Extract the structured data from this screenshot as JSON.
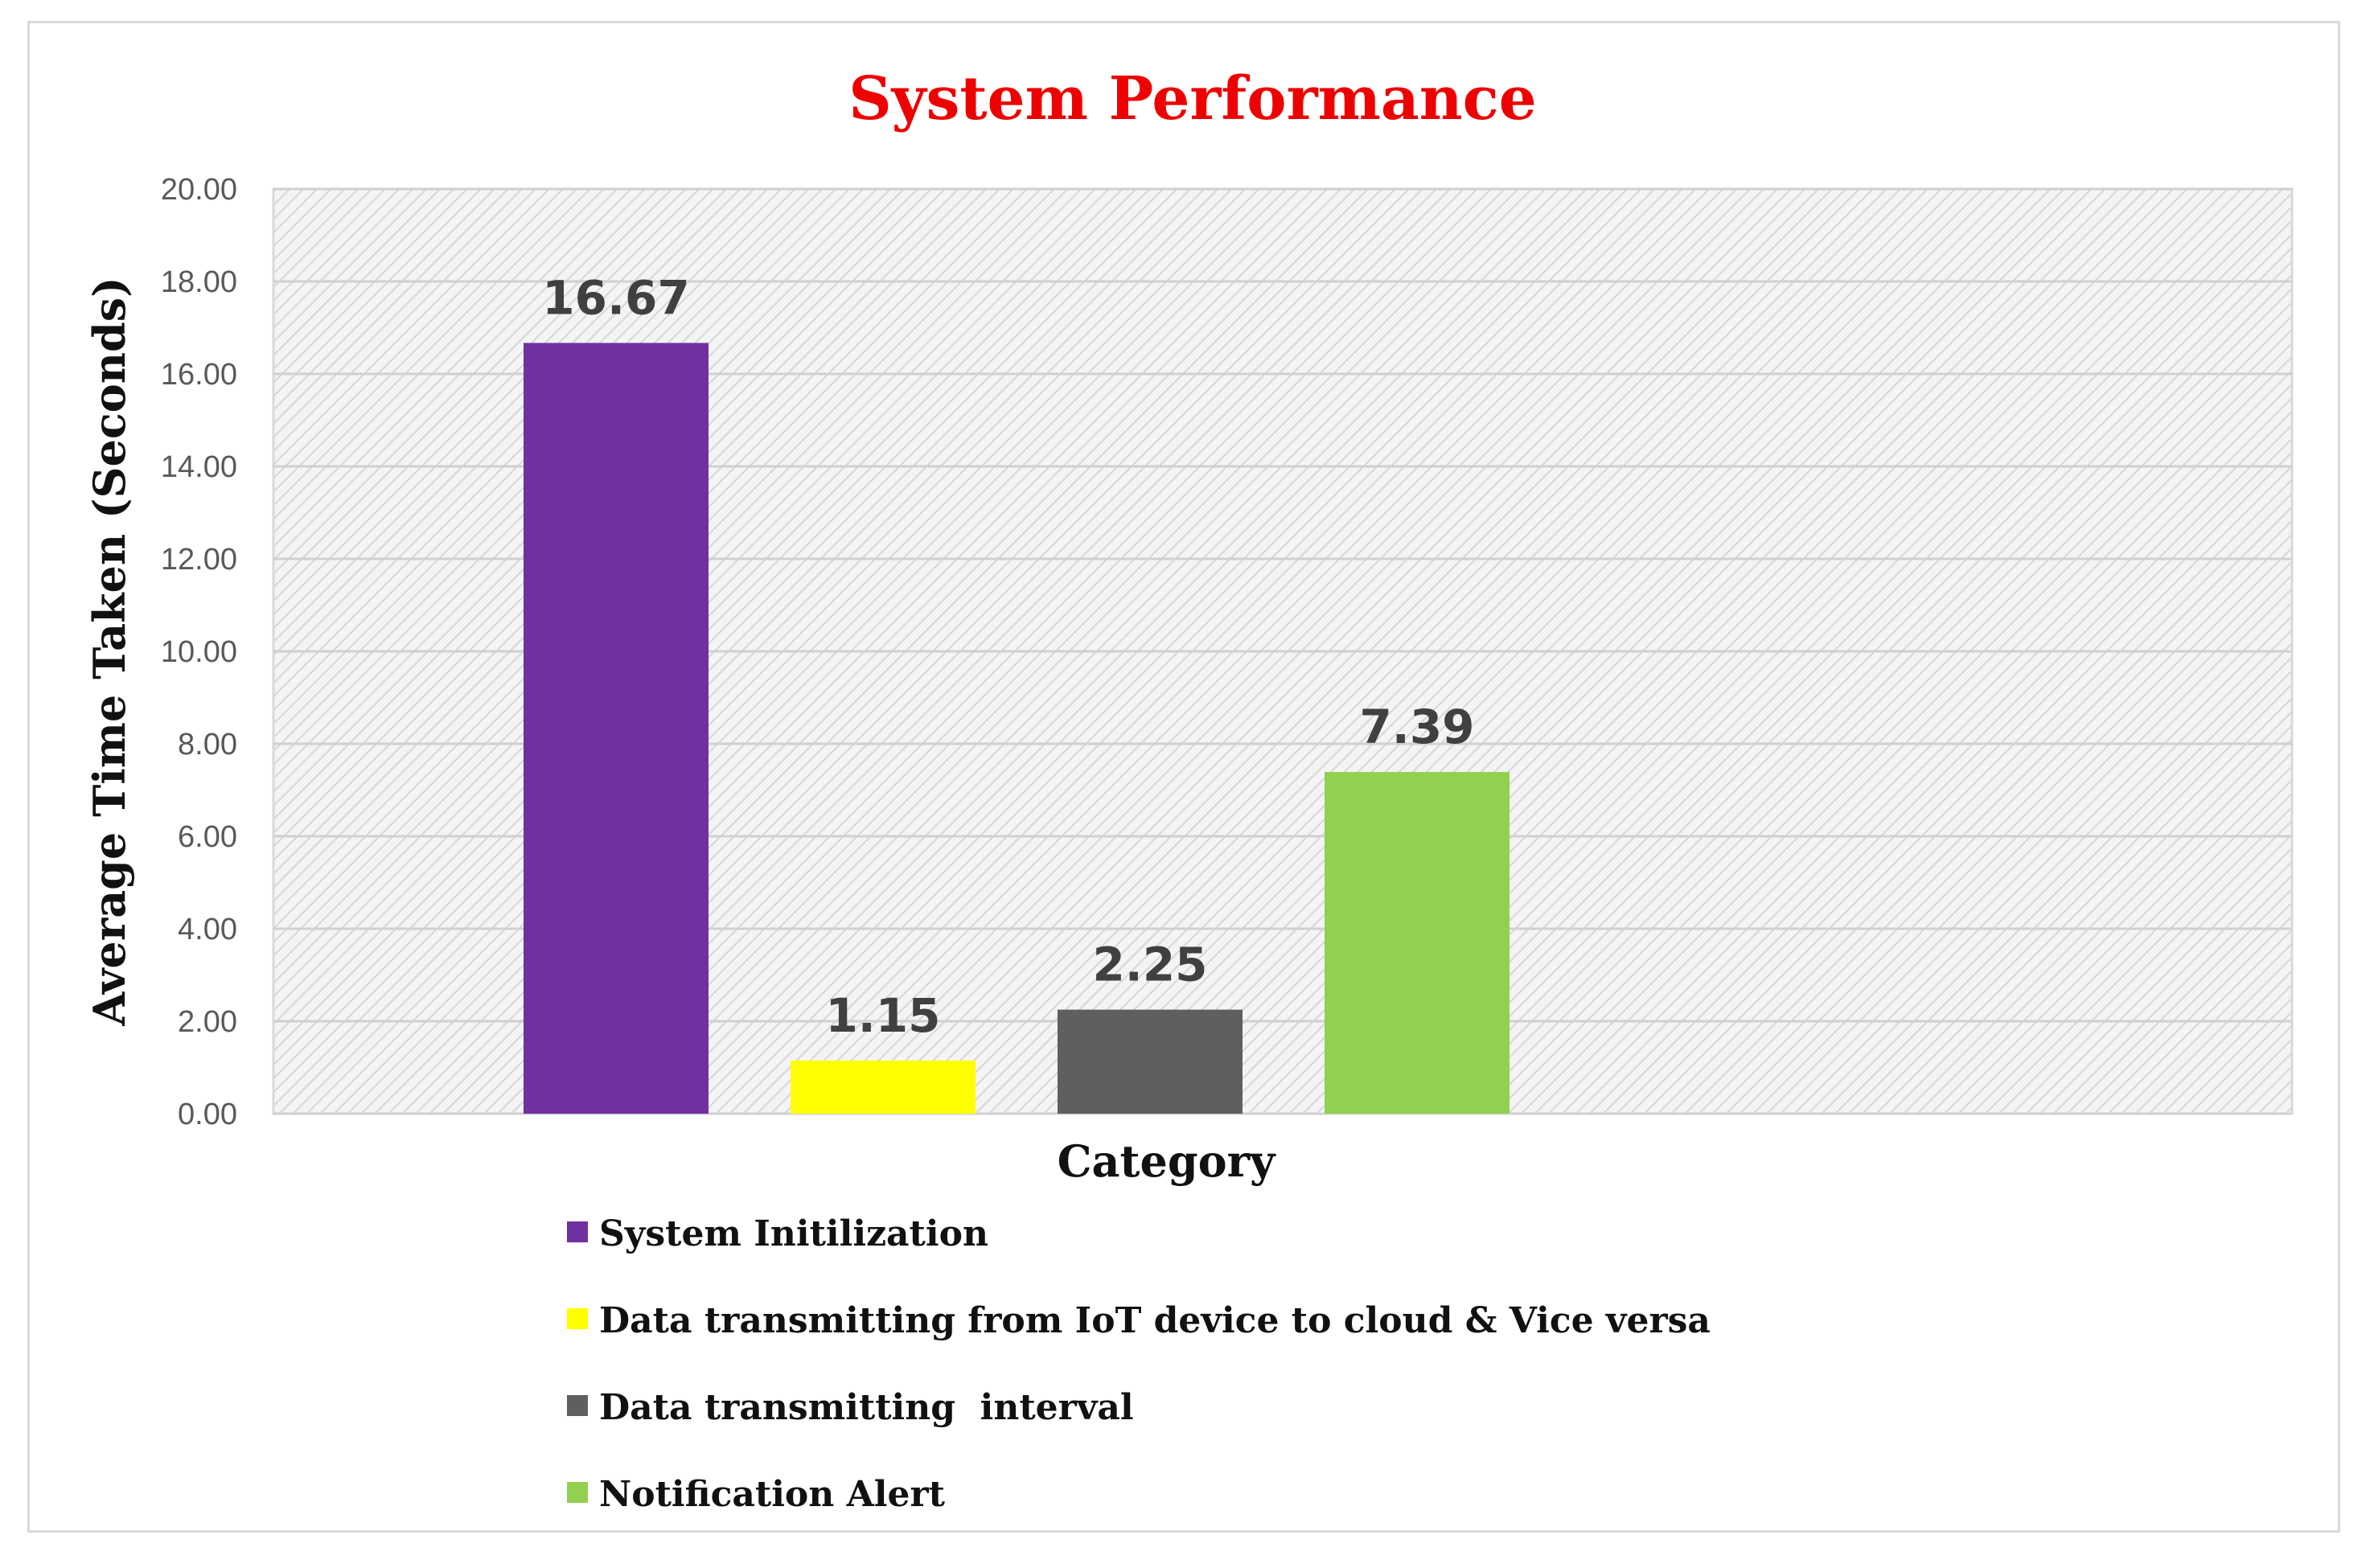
{
  "chart_data": {
    "type": "bar",
    "title": "System Performance",
    "xlabel": "Category",
    "ylabel": "Average Time Taken (Seconds)",
    "ylim": [
      0,
      20
    ],
    "yticks": [
      "0.00",
      "2.00",
      "4.00",
      "6.00",
      "8.00",
      "10.00",
      "12.00",
      "14.00",
      "16.00",
      "18.00",
      "20.00"
    ],
    "grid": true,
    "legend_position": "bottom",
    "categories": [
      "System Initilization",
      "Data transmitting from IoT device to cloud & Vice versa",
      "Data transmitting  interval",
      "Notification Alert"
    ],
    "values": [
      16.67,
      1.15,
      2.25,
      7.39
    ],
    "value_labels": [
      "16.67",
      "1.15",
      "2.25",
      "7.39"
    ],
    "colors": [
      "#7030a0",
      "#ffff00",
      "#5f5f5f",
      "#92d050"
    ],
    "title_color": "#ee0000",
    "plot_background": "hatched light gray"
  }
}
